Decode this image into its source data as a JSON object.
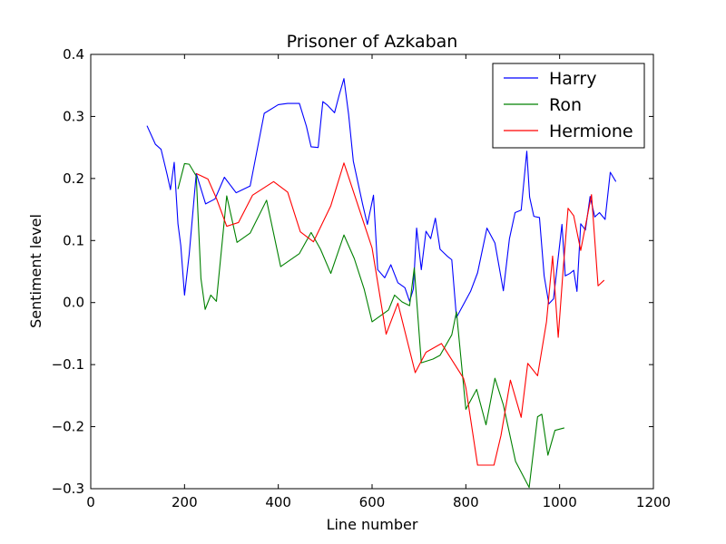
{
  "chart_data": {
    "type": "line",
    "title": "Prisoner of Azkaban",
    "xlabel": "Line number",
    "ylabel": "Sentiment level",
    "xlim": [
      0,
      1200
    ],
    "ylim": [
      -0.3,
      0.4
    ],
    "xticks": [
      0,
      200,
      400,
      600,
      800,
      1000,
      1200
    ],
    "xtick_labels": [
      "0",
      "200",
      "400",
      "600",
      "800",
      "1000",
      "1200"
    ],
    "yticks": [
      -0.3,
      -0.2,
      -0.1,
      0.0,
      0.1,
      0.2,
      0.3,
      0.4
    ],
    "ytick_labels": [
      "−0.3",
      "−0.2",
      "−0.1",
      "0.0",
      "0.1",
      "0.2",
      "0.3",
      "0.4"
    ],
    "grid": false,
    "legend_position": "top-right",
    "series": [
      {
        "name": "Harry",
        "color": "#0000ff",
        "points": [
          [
            120,
            0.285
          ],
          [
            138,
            0.255
          ],
          [
            150,
            0.247
          ],
          [
            163,
            0.206
          ],
          [
            170,
            0.182
          ],
          [
            178,
            0.226
          ],
          [
            186,
            0.127
          ],
          [
            192,
            0.092
          ],
          [
            200,
            0.012
          ],
          [
            210,
            0.078
          ],
          [
            225,
            0.208
          ],
          [
            245,
            0.159
          ],
          [
            265,
            0.167
          ],
          [
            285,
            0.202
          ],
          [
            310,
            0.177
          ],
          [
            340,
            0.188
          ],
          [
            370,
            0.305
          ],
          [
            400,
            0.319
          ],
          [
            420,
            0.321
          ],
          [
            445,
            0.321
          ],
          [
            460,
            0.284
          ],
          [
            470,
            0.251
          ],
          [
            485,
            0.25
          ],
          [
            495,
            0.324
          ],
          [
            505,
            0.318
          ],
          [
            520,
            0.306
          ],
          [
            530,
            0.335
          ],
          [
            540,
            0.361
          ],
          [
            550,
            0.303
          ],
          [
            560,
            0.228
          ],
          [
            580,
            0.158
          ],
          [
            590,
            0.126
          ],
          [
            603,
            0.173
          ],
          [
            612,
            0.053
          ],
          [
            627,
            0.04
          ],
          [
            640,
            0.061
          ],
          [
            655,
            0.032
          ],
          [
            670,
            0.024
          ],
          [
            680,
            0.002
          ],
          [
            688,
            0.022
          ],
          [
            695,
            0.12
          ],
          [
            705,
            0.053
          ],
          [
            715,
            0.115
          ],
          [
            725,
            0.103
          ],
          [
            735,
            0.136
          ],
          [
            745,
            0.086
          ],
          [
            760,
            0.075
          ],
          [
            770,
            0.069
          ],
          [
            780,
            -0.024
          ],
          [
            795,
            -0.003
          ],
          [
            810,
            0.018
          ],
          [
            825,
            0.048
          ],
          [
            845,
            0.12
          ],
          [
            862,
            0.096
          ],
          [
            880,
            0.019
          ],
          [
            893,
            0.103
          ],
          [
            905,
            0.145
          ],
          [
            918,
            0.149
          ],
          [
            930,
            0.244
          ],
          [
            936,
            0.17
          ],
          [
            945,
            0.139
          ],
          [
            957,
            0.137
          ],
          [
            967,
            0.043
          ],
          [
            977,
            -0.002
          ],
          [
            987,
            0.006
          ],
          [
            1005,
            0.126
          ],
          [
            1012,
            0.043
          ],
          [
            1022,
            0.047
          ],
          [
            1030,
            0.052
          ],
          [
            1037,
            0.018
          ],
          [
            1045,
            0.127
          ],
          [
            1055,
            0.117
          ],
          [
            1065,
            0.171
          ],
          [
            1075,
            0.138
          ],
          [
            1085,
            0.145
          ],
          [
            1097,
            0.134
          ],
          [
            1108,
            0.21
          ],
          [
            1120,
            0.195
          ]
        ]
      },
      {
        "name": "Ron",
        "color": "#008000",
        "points": [
          [
            186,
            0.183
          ],
          [
            200,
            0.224
          ],
          [
            210,
            0.223
          ],
          [
            225,
            0.204
          ],
          [
            235,
            0.039
          ],
          [
            244,
            -0.011
          ],
          [
            256,
            0.012
          ],
          [
            268,
            0.002
          ],
          [
            290,
            0.172
          ],
          [
            312,
            0.097
          ],
          [
            340,
            0.112
          ],
          [
            375,
            0.165
          ],
          [
            405,
            0.058
          ],
          [
            445,
            0.079
          ],
          [
            470,
            0.113
          ],
          [
            490,
            0.086
          ],
          [
            512,
            0.047
          ],
          [
            540,
            0.109
          ],
          [
            562,
            0.071
          ],
          [
            583,
            0.022
          ],
          [
            600,
            -0.031
          ],
          [
            635,
            -0.012
          ],
          [
            648,
            0.012
          ],
          [
            664,
            0.001
          ],
          [
            680,
            -0.005
          ],
          [
            690,
            0.056
          ],
          [
            705,
            -0.097
          ],
          [
            730,
            -0.091
          ],
          [
            745,
            -0.085
          ],
          [
            770,
            -0.052
          ],
          [
            780,
            -0.015
          ],
          [
            800,
            -0.172
          ],
          [
            823,
            -0.14
          ],
          [
            843,
            -0.197
          ],
          [
            862,
            -0.122
          ],
          [
            880,
            -0.165
          ],
          [
            906,
            -0.256
          ],
          [
            935,
            -0.298
          ],
          [
            953,
            -0.184
          ],
          [
            962,
            -0.18
          ],
          [
            975,
            -0.246
          ],
          [
            990,
            -0.206
          ],
          [
            1010,
            -0.202
          ]
        ]
      },
      {
        "name": "Hermione",
        "color": "#ff0000",
        "points": [
          [
            225,
            0.208
          ],
          [
            250,
            0.199
          ],
          [
            268,
            0.168
          ],
          [
            290,
            0.123
          ],
          [
            315,
            0.129
          ],
          [
            345,
            0.173
          ],
          [
            390,
            0.195
          ],
          [
            420,
            0.178
          ],
          [
            447,
            0.114
          ],
          [
            475,
            0.098
          ],
          [
            512,
            0.156
          ],
          [
            540,
            0.225
          ],
          [
            600,
            0.088
          ],
          [
            630,
            -0.051
          ],
          [
            655,
            -0.001
          ],
          [
            692,
            -0.113
          ],
          [
            715,
            -0.08
          ],
          [
            748,
            -0.066
          ],
          [
            795,
            -0.122
          ],
          [
            800,
            -0.137
          ],
          [
            825,
            -0.262
          ],
          [
            860,
            -0.262
          ],
          [
            875,
            -0.214
          ],
          [
            895,
            -0.125
          ],
          [
            918,
            -0.185
          ],
          [
            932,
            -0.098
          ],
          [
            953,
            -0.118
          ],
          [
            972,
            -0.031
          ],
          [
            985,
            0.075
          ],
          [
            997,
            -0.056
          ],
          [
            1007,
            0.048
          ],
          [
            1018,
            0.152
          ],
          [
            1030,
            0.14
          ],
          [
            1045,
            0.084
          ],
          [
            1068,
            0.174
          ],
          [
            1082,
            0.027
          ],
          [
            1095,
            0.036
          ]
        ]
      }
    ]
  }
}
